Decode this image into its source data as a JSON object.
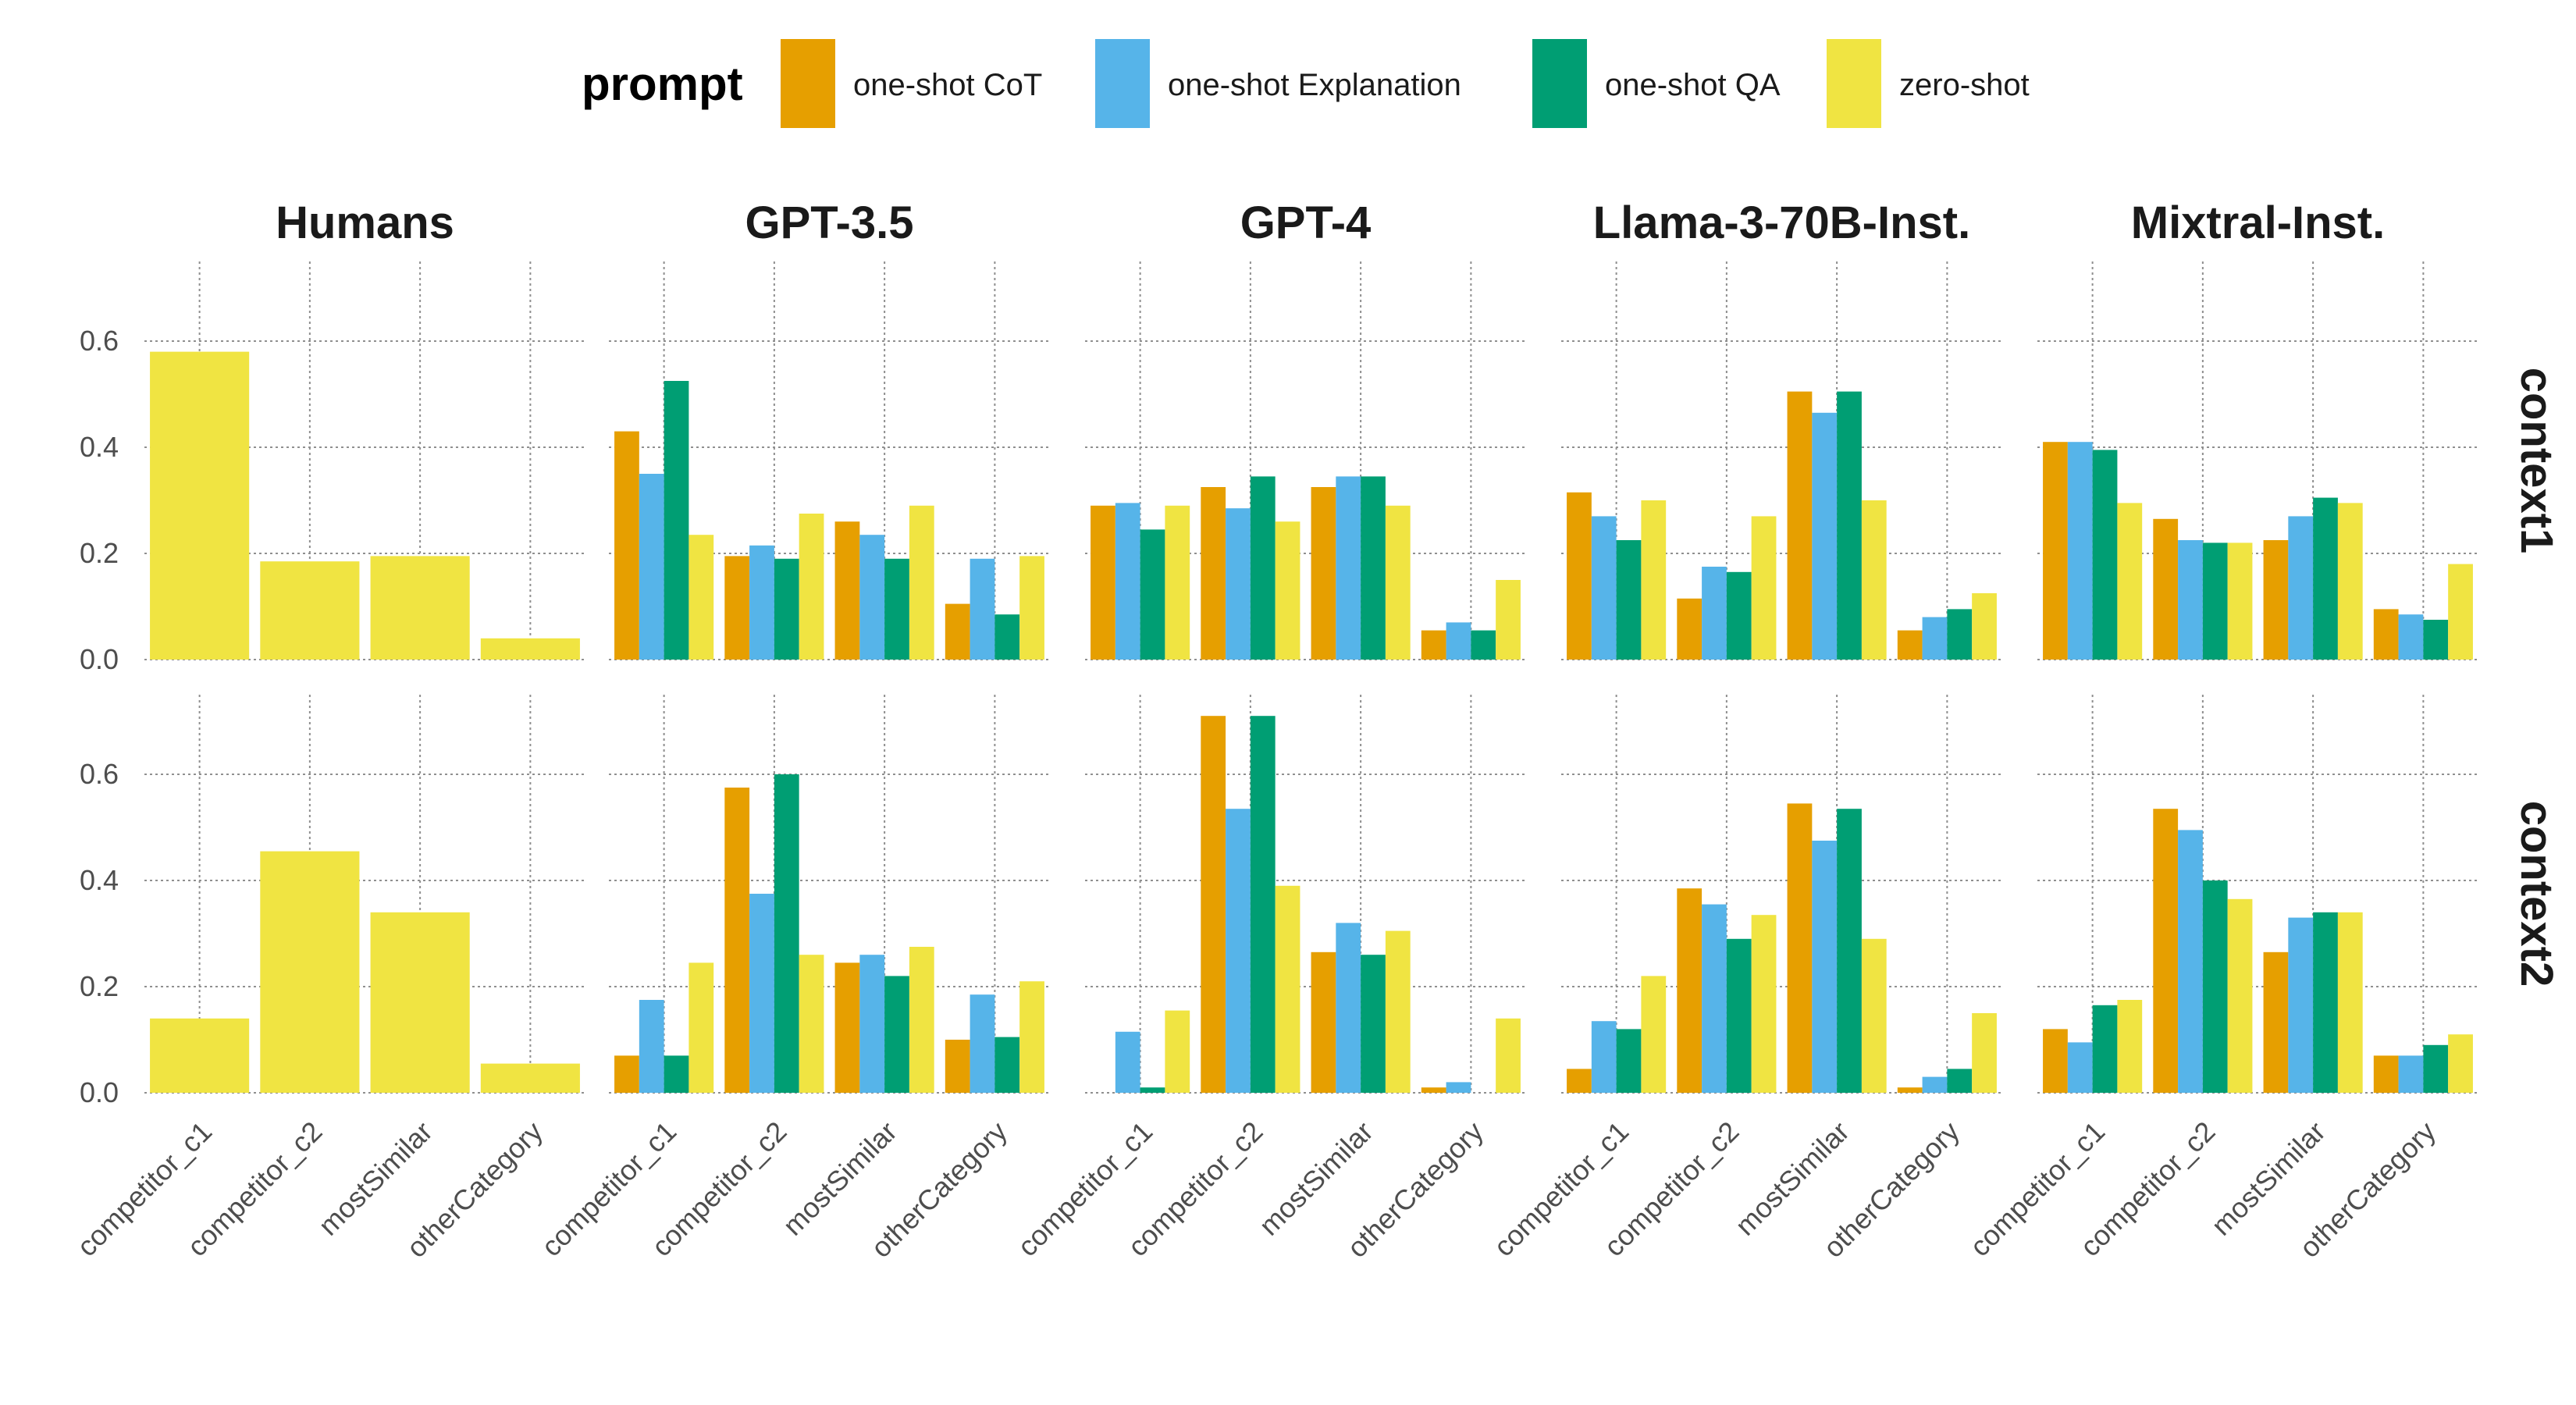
{
  "chart_data": {
    "type": "bar",
    "legend": {
      "title": "prompt",
      "position": "top",
      "items": [
        {
          "name": "one-shot CoT",
          "color": "#E69F00"
        },
        {
          "name": "one-shot Explanation",
          "color": "#56B4E9"
        },
        {
          "name": "one-shot QA",
          "color": "#009E73"
        },
        {
          "name": "zero-shot",
          "color": "#F0E442"
        }
      ]
    },
    "categories": [
      "competitor_c1",
      "competitor_c2",
      "mostSimilar",
      "otherCategory"
    ],
    "columns": [
      "Humans",
      "GPT-3.5",
      "GPT-4",
      "Llama-3-70B-Inst.",
      "Mixtral-Inst."
    ],
    "rows": [
      "context1",
      "context2"
    ],
    "ylim": [
      0,
      0.75
    ],
    "yticks": [
      "0.0",
      "0.2",
      "0.4",
      "0.6"
    ],
    "grid": true,
    "panels": [
      {
        "column": "Humans",
        "row": "context1",
        "series": [
          {
            "name": "zero-shot",
            "values": [
              0.58,
              0.185,
              0.195,
              0.04
            ]
          }
        ]
      },
      {
        "column": "GPT-3.5",
        "row": "context1",
        "series": [
          {
            "name": "one-shot CoT",
            "values": [
              0.43,
              0.195,
              0.26,
              0.105
            ]
          },
          {
            "name": "one-shot Explanation",
            "values": [
              0.35,
              0.215,
              0.235,
              0.19
            ]
          },
          {
            "name": "one-shot QA",
            "values": [
              0.525,
              0.19,
              0.19,
              0.085
            ]
          },
          {
            "name": "zero-shot",
            "values": [
              0.235,
              0.275,
              0.29,
              0.195
            ]
          }
        ]
      },
      {
        "column": "GPT-4",
        "row": "context1",
        "series": [
          {
            "name": "one-shot CoT",
            "values": [
              0.29,
              0.325,
              0.325,
              0.055
            ]
          },
          {
            "name": "one-shot Explanation",
            "values": [
              0.295,
              0.285,
              0.345,
              0.07
            ]
          },
          {
            "name": "one-shot QA",
            "values": [
              0.245,
              0.345,
              0.345,
              0.055
            ]
          },
          {
            "name": "zero-shot",
            "values": [
              0.29,
              0.26,
              0.29,
              0.15
            ]
          }
        ]
      },
      {
        "column": "Llama-3-70B-Inst.",
        "row": "context1",
        "series": [
          {
            "name": "one-shot CoT",
            "values": [
              0.315,
              0.115,
              0.505,
              0.055
            ]
          },
          {
            "name": "one-shot Explanation",
            "values": [
              0.27,
              0.175,
              0.465,
              0.08
            ]
          },
          {
            "name": "one-shot QA",
            "values": [
              0.225,
              0.165,
              0.505,
              0.095
            ]
          },
          {
            "name": "zero-shot",
            "values": [
              0.3,
              0.27,
              0.3,
              0.125
            ]
          }
        ]
      },
      {
        "column": "Mixtral-Inst.",
        "row": "context1",
        "series": [
          {
            "name": "one-shot CoT",
            "values": [
              0.41,
              0.265,
              0.225,
              0.095
            ]
          },
          {
            "name": "one-shot Explanation",
            "values": [
              0.41,
              0.225,
              0.27,
              0.085
            ]
          },
          {
            "name": "one-shot QA",
            "values": [
              0.395,
              0.22,
              0.305,
              0.075
            ]
          },
          {
            "name": "zero-shot",
            "values": [
              0.295,
              0.22,
              0.295,
              0.18
            ]
          }
        ]
      },
      {
        "column": "Humans",
        "row": "context2",
        "series": [
          {
            "name": "zero-shot",
            "values": [
              0.14,
              0.455,
              0.34,
              0.055
            ]
          }
        ]
      },
      {
        "column": "GPT-3.5",
        "row": "context2",
        "series": [
          {
            "name": "one-shot CoT",
            "values": [
              0.07,
              0.575,
              0.245,
              0.1
            ]
          },
          {
            "name": "one-shot Explanation",
            "values": [
              0.175,
              0.375,
              0.26,
              0.185
            ]
          },
          {
            "name": "one-shot QA",
            "values": [
              0.07,
              0.6,
              0.22,
              0.105
            ]
          },
          {
            "name": "zero-shot",
            "values": [
              0.245,
              0.26,
              0.275,
              0.21
            ]
          }
        ]
      },
      {
        "column": "GPT-4",
        "row": "context2",
        "series": [
          {
            "name": "one-shot CoT",
            "values": [
              0.0,
              0.71,
              0.265,
              0.01
            ]
          },
          {
            "name": "one-shot Explanation",
            "values": [
              0.115,
              0.535,
              0.32,
              0.02
            ]
          },
          {
            "name": "one-shot QA",
            "values": [
              0.01,
              0.71,
              0.26,
              0.0
            ]
          },
          {
            "name": "zero-shot",
            "values": [
              0.155,
              0.39,
              0.305,
              0.14
            ]
          }
        ]
      },
      {
        "column": "Llama-3-70B-Inst.",
        "row": "context2",
        "series": [
          {
            "name": "one-shot CoT",
            "values": [
              0.045,
              0.385,
              0.545,
              0.01
            ]
          },
          {
            "name": "one-shot Explanation",
            "values": [
              0.135,
              0.355,
              0.475,
              0.03
            ]
          },
          {
            "name": "one-shot QA",
            "values": [
              0.12,
              0.29,
              0.535,
              0.045
            ]
          },
          {
            "name": "zero-shot",
            "values": [
              0.22,
              0.335,
              0.29,
              0.15
            ]
          }
        ]
      },
      {
        "column": "Mixtral-Inst.",
        "row": "context2",
        "series": [
          {
            "name": "one-shot CoT",
            "values": [
              0.12,
              0.535,
              0.265,
              0.07
            ]
          },
          {
            "name": "one-shot Explanation",
            "values": [
              0.095,
              0.495,
              0.33,
              0.07
            ]
          },
          {
            "name": "one-shot QA",
            "values": [
              0.165,
              0.4,
              0.34,
              0.09
            ]
          },
          {
            "name": "zero-shot",
            "values": [
              0.175,
              0.365,
              0.34,
              0.11
            ]
          }
        ]
      }
    ]
  }
}
